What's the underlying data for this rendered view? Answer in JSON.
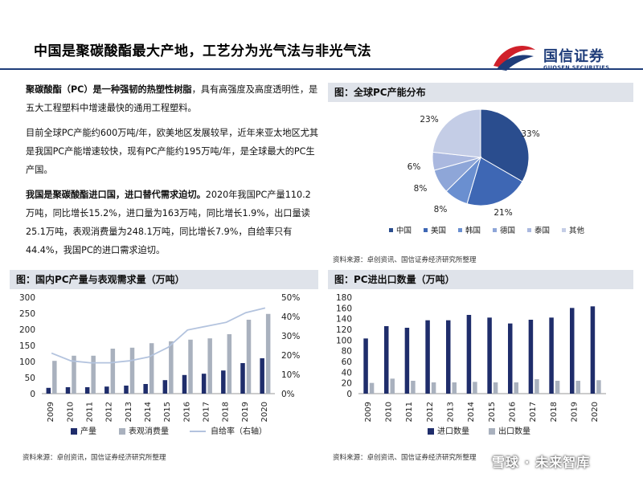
{
  "page": {
    "title": "中国是聚碳酸酯最大产地，工艺分为光气法与非光气法",
    "logo_cn": "国信证券",
    "logo_en": "GUOSEN SECURITIES",
    "watermark": "雪球 · 未来智库"
  },
  "text": {
    "p1_bold": "聚碳酸酯（PC）是一种强韧的热塑性树脂",
    "p1_rest": "，具有高强度及高度透明性，是五大工程塑料中增速最快的通用工程塑料。",
    "p2": "目前全球PC产能约600万吨/年，欧美地区发展较早，近年来亚太地区尤其是我国PC产能增速较快，现有PC产能约195万吨/年，是全球最大的PC生产国。",
    "p3_bold": "我国是聚碳酸酯进口国，进口替代需求迫切。",
    "p3_rest": "2020年我国PC产量110.2万吨，同比增长15.2%，进口量为163万吨，同比增长1.9%，出口量读25.1万吨，表观消费量为248.1万吨，同比增长7.9%，自给率只有44.4%，我国PC的进口需求迫切。"
  },
  "panels": {
    "pie_title": "图：全球PC产能分布",
    "pie_source": "资料来源：卓创资讯、国信证券经济研究所整理",
    "left_title": "图：国内PC产量与表观需求量（万吨）",
    "left_source": "资料来源：卓创资讯，国信证券经济研究所整理",
    "right_title": "图：PC进出口数量（万吨）",
    "right_source": "资料来源：卓创资讯、国信证券经济研究所整理"
  },
  "colors": {
    "brand_navy": "#1f3d7a",
    "brand_red": "#d0202a",
    "bar_dark": "#1f2d6b",
    "bar_gray": "#a9b1be",
    "line_light": "#b3c3de"
  },
  "chart_data": [
    {
      "type": "pie",
      "title": "图：全球PC产能分布",
      "categories": [
        "中国",
        "美国",
        "韩国",
        "德国",
        "泰国",
        "其他"
      ],
      "values": [
        33,
        21,
        8,
        8,
        6,
        23
      ],
      "labels": [
        "33%",
        "21%",
        "8%",
        "8%",
        "6%",
        "23%"
      ],
      "colors": [
        "#2a4d8e",
        "#3e67b4",
        "#6a8fd0",
        "#8ea6d8",
        "#aab8df",
        "#c4cde6"
      ],
      "legend_position": "bottom"
    },
    {
      "type": "bar",
      "title": "图：国内PC产量与表观需求量（万吨）",
      "categories": [
        "2009",
        "2010",
        "2011",
        "2012",
        "2013",
        "2014",
        "2015",
        "2016",
        "2017",
        "2018",
        "2019",
        "2020"
      ],
      "series": [
        {
          "name": "产量",
          "kind": "bar",
          "axis": "left",
          "values": [
            18,
            20,
            20,
            22,
            25,
            30,
            42,
            58,
            62,
            72,
            95,
            110.2
          ]
        },
        {
          "name": "表观消费量",
          "kind": "bar",
          "axis": "left",
          "values": [
            102,
            118,
            118,
            140,
            143,
            157,
            163,
            168,
            172,
            185,
            230,
            248.1
          ]
        },
        {
          "name": "自给率（右轴）",
          "kind": "line",
          "axis": "right",
          "values": [
            21,
            17,
            16,
            16,
            17,
            19,
            24,
            33,
            35,
            37,
            42,
            44.4
          ]
        }
      ],
      "ylim": [
        0,
        300
      ],
      "yticks": [
        "0",
        "50",
        "100",
        "150",
        "200",
        "250",
        "300"
      ],
      "y2lim": [
        0,
        50
      ],
      "y2ticks": [
        "0%",
        "10%",
        "20%",
        "30%",
        "40%",
        "50%"
      ],
      "grid": false,
      "legend_position": "bottom"
    },
    {
      "type": "bar",
      "title": "图：PC进出口数量（万吨）",
      "categories": [
        "2009",
        "2010",
        "2011",
        "2012",
        "2013",
        "2014",
        "2015",
        "2016",
        "2017",
        "2018",
        "2019",
        "2020"
      ],
      "series": [
        {
          "name": "进口数量",
          "values": [
            103,
            126,
            123,
            137,
            137,
            147,
            142,
            131,
            138,
            142,
            160,
            163
          ]
        },
        {
          "name": "出口数量",
          "values": [
            20,
            28,
            24,
            21,
            21,
            22,
            21,
            21,
            27,
            24,
            24,
            25.1
          ]
        }
      ],
      "ylim": [
        0,
        180
      ],
      "yticks": [
        "0",
        "20",
        "40",
        "60",
        "80",
        "100",
        "120",
        "140",
        "160",
        "180"
      ],
      "grid": false,
      "legend_position": "bottom"
    }
  ]
}
